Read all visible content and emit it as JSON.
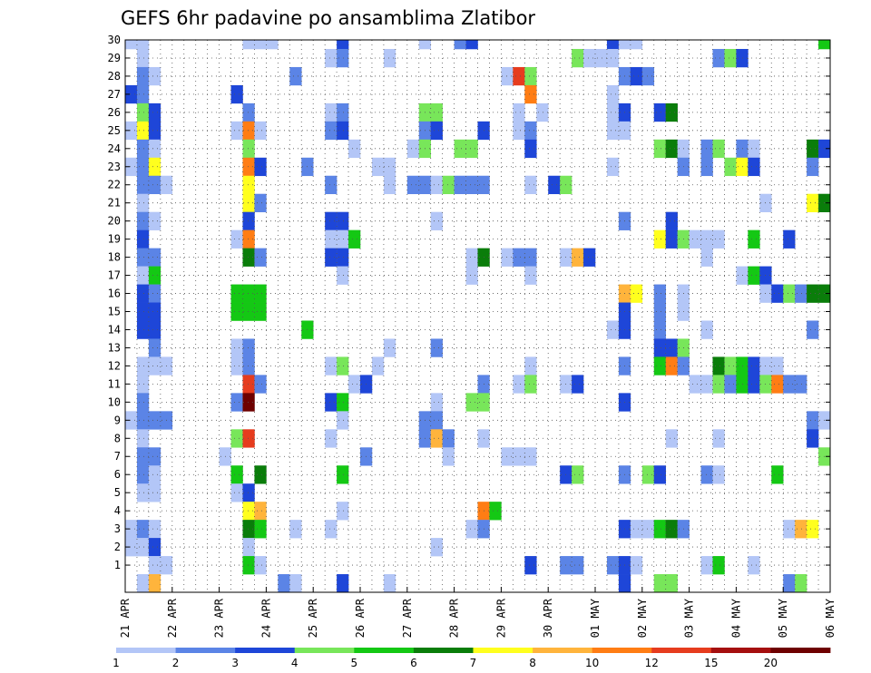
{
  "chart_data": {
    "type": "heatmap",
    "title": "GEFS 6hr padavine po ansamblima Zlatibor",
    "xlabel": "",
    "ylabel": "",
    "y_ticks": [
      "1",
      "2",
      "3",
      "4",
      "5",
      "6",
      "7",
      "8",
      "9",
      "10",
      "11",
      "12",
      "13",
      "14",
      "15",
      "16",
      "17",
      "18",
      "19",
      "20",
      "21",
      "22",
      "23",
      "24",
      "25",
      "26",
      "27",
      "28",
      "29",
      "30"
    ],
    "x_ticks": [
      "21 APR",
      "22 APR",
      "23 APR",
      "24 APR",
      "25 APR",
      "26 APR",
      "27 APR",
      "28 APR",
      "29 APR",
      "30 APR",
      "01 MAY",
      "02 MAY",
      "03 MAY",
      "04 MAY",
      "05 MAY",
      "06 MAY"
    ],
    "x_range_steps": [
      0,
      60
    ],
    "y_range": [
      0,
      30
    ],
    "grid": "dotted",
    "colorbar": {
      "levels": [
        "1",
        "2",
        "3",
        "4",
        "5",
        "6",
        "7",
        "8",
        "10",
        "12",
        "15",
        "20"
      ],
      "colors": [
        "#b3c6f7",
        "#5b84e6",
        "#1e46d8",
        "#78e65a",
        "#14c814",
        "#0a7d0a",
        "#ffff1e",
        "#ffb43c",
        "#ff7d14",
        "#e63c1e",
        "#a50f0f",
        "#6e0000"
      ]
    },
    "class_colors": [
      "#b3c6f7",
      "#5b84e6",
      "#1e46d8",
      "#78e65a",
      "#14c814",
      "#0a7d0a",
      "#ffff1e",
      "#ffb43c",
      "#ff7d14",
      "#e63c1e",
      "#a50f0f",
      "#6e0000"
    ],
    "cells_note_format": "[member, time_step, class]",
    "cells": [
      [
        30,
        0,
        1
      ],
      [
        30,
        1,
        1
      ],
      [
        30,
        10,
        1
      ],
      [
        30,
        11,
        1
      ],
      [
        30,
        12,
        1
      ],
      [
        30,
        18,
        3
      ],
      [
        30,
        25,
        1
      ],
      [
        30,
        28,
        2
      ],
      [
        30,
        29,
        3
      ],
      [
        30,
        41,
        3
      ],
      [
        30,
        42,
        1
      ],
      [
        30,
        43,
        1
      ],
      [
        30,
        59,
        5
      ],
      [
        29,
        1,
        1
      ],
      [
        29,
        17,
        1
      ],
      [
        29,
        18,
        2
      ],
      [
        29,
        22,
        1
      ],
      [
        29,
        38,
        4
      ],
      [
        29,
        39,
        1
      ],
      [
        29,
        40,
        1
      ],
      [
        29,
        41,
        1
      ],
      [
        29,
        50,
        2
      ],
      [
        29,
        51,
        4
      ],
      [
        29,
        52,
        3
      ],
      [
        28,
        1,
        2
      ],
      [
        28,
        2,
        1
      ],
      [
        28,
        14,
        2
      ],
      [
        28,
        32,
        1
      ],
      [
        28,
        33,
        10
      ],
      [
        28,
        34,
        4
      ],
      [
        28,
        42,
        2
      ],
      [
        28,
        43,
        3
      ],
      [
        28,
        44,
        2
      ],
      [
        27,
        0,
        3
      ],
      [
        27,
        1,
        2
      ],
      [
        27,
        9,
        3
      ],
      [
        27,
        34,
        9
      ],
      [
        27,
        41,
        1
      ],
      [
        26,
        1,
        4
      ],
      [
        26,
        2,
        3
      ],
      [
        26,
        10,
        2
      ],
      [
        26,
        17,
        1
      ],
      [
        26,
        18,
        2
      ],
      [
        26,
        25,
        4
      ],
      [
        26,
        26,
        4
      ],
      [
        26,
        33,
        1
      ],
      [
        26,
        35,
        1
      ],
      [
        26,
        41,
        1
      ],
      [
        26,
        42,
        3
      ],
      [
        26,
        45,
        3
      ],
      [
        26,
        46,
        6
      ],
      [
        25,
        0,
        1
      ],
      [
        25,
        1,
        7
      ],
      [
        25,
        2,
        3
      ],
      [
        25,
        9,
        1
      ],
      [
        25,
        10,
        9
      ],
      [
        25,
        11,
        1
      ],
      [
        25,
        17,
        2
      ],
      [
        25,
        18,
        3
      ],
      [
        25,
        25,
        2
      ],
      [
        25,
        26,
        3
      ],
      [
        25,
        30,
        3
      ],
      [
        25,
        33,
        1
      ],
      [
        25,
        34,
        2
      ],
      [
        25,
        41,
        1
      ],
      [
        25,
        42,
        1
      ],
      [
        24,
        1,
        2
      ],
      [
        24,
        2,
        1
      ],
      [
        24,
        10,
        4
      ],
      [
        24,
        19,
        1
      ],
      [
        24,
        24,
        1
      ],
      [
        24,
        25,
        4
      ],
      [
        24,
        28,
        4
      ],
      [
        24,
        29,
        4
      ],
      [
        24,
        34,
        3
      ],
      [
        24,
        45,
        4
      ],
      [
        24,
        46,
        6
      ],
      [
        24,
        47,
        1
      ],
      [
        24,
        49,
        2
      ],
      [
        24,
        50,
        4
      ],
      [
        24,
        52,
        2
      ],
      [
        24,
        53,
        1
      ],
      [
        24,
        58,
        6
      ],
      [
        24,
        59,
        3
      ],
      [
        23,
        0,
        1
      ],
      [
        23,
        1,
        2
      ],
      [
        23,
        2,
        7
      ],
      [
        23,
        10,
        9
      ],
      [
        23,
        11,
        3
      ],
      [
        23,
        15,
        2
      ],
      [
        23,
        21,
        1
      ],
      [
        23,
        22,
        1
      ],
      [
        23,
        41,
        1
      ],
      [
        23,
        47,
        2
      ],
      [
        23,
        49,
        2
      ],
      [
        23,
        51,
        4
      ],
      [
        23,
        52,
        7
      ],
      [
        23,
        53,
        3
      ],
      [
        23,
        58,
        2
      ],
      [
        22,
        1,
        2
      ],
      [
        22,
        2,
        2
      ],
      [
        22,
        3,
        1
      ],
      [
        22,
        10,
        7
      ],
      [
        22,
        17,
        2
      ],
      [
        22,
        22,
        1
      ],
      [
        22,
        24,
        2
      ],
      [
        22,
        25,
        2
      ],
      [
        22,
        26,
        1
      ],
      [
        22,
        27,
        4
      ],
      [
        22,
        28,
        2
      ],
      [
        22,
        29,
        2
      ],
      [
        22,
        30,
        2
      ],
      [
        22,
        34,
        1
      ],
      [
        22,
        36,
        3
      ],
      [
        22,
        37,
        4
      ],
      [
        21,
        1,
        1
      ],
      [
        21,
        10,
        7
      ],
      [
        21,
        11,
        2
      ],
      [
        21,
        54,
        1
      ],
      [
        21,
        58,
        7
      ],
      [
        21,
        59,
        6
      ],
      [
        20,
        1,
        2
      ],
      [
        20,
        2,
        1
      ],
      [
        20,
        10,
        3
      ],
      [
        20,
        17,
        3
      ],
      [
        20,
        18,
        3
      ],
      [
        20,
        26,
        1
      ],
      [
        20,
        42,
        2
      ],
      [
        20,
        46,
        3
      ],
      [
        19,
        1,
        3
      ],
      [
        19,
        9,
        1
      ],
      [
        19,
        10,
        9
      ],
      [
        19,
        17,
        1
      ],
      [
        19,
        18,
        1
      ],
      [
        19,
        19,
        5
      ],
      [
        19,
        45,
        7
      ],
      [
        19,
        46,
        3
      ],
      [
        19,
        47,
        4
      ],
      [
        19,
        48,
        1
      ],
      [
        19,
        49,
        1
      ],
      [
        19,
        50,
        1
      ],
      [
        19,
        53,
        5
      ],
      [
        19,
        56,
        3
      ],
      [
        18,
        1,
        2
      ],
      [
        18,
        2,
        2
      ],
      [
        18,
        10,
        6
      ],
      [
        18,
        11,
        2
      ],
      [
        18,
        17,
        3
      ],
      [
        18,
        18,
        3
      ],
      [
        18,
        29,
        1
      ],
      [
        18,
        30,
        6
      ],
      [
        18,
        32,
        1
      ],
      [
        18,
        33,
        2
      ],
      [
        18,
        34,
        2
      ],
      [
        18,
        37,
        1
      ],
      [
        18,
        38,
        8
      ],
      [
        18,
        39,
        3
      ],
      [
        18,
        49,
        1
      ],
      [
        17,
        1,
        1
      ],
      [
        17,
        2,
        5
      ],
      [
        17,
        18,
        1
      ],
      [
        17,
        29,
        1
      ],
      [
        17,
        34,
        1
      ],
      [
        17,
        52,
        1
      ],
      [
        17,
        53,
        5
      ],
      [
        17,
        54,
        3
      ],
      [
        16,
        1,
        3
      ],
      [
        16,
        2,
        2
      ],
      [
        16,
        9,
        5
      ],
      [
        16,
        10,
        5
      ],
      [
        16,
        11,
        5
      ],
      [
        16,
        42,
        8
      ],
      [
        16,
        43,
        7
      ],
      [
        16,
        45,
        2
      ],
      [
        16,
        47,
        1
      ],
      [
        16,
        54,
        1
      ],
      [
        16,
        55,
        3
      ],
      [
        16,
        56,
        4
      ],
      [
        16,
        57,
        2
      ],
      [
        16,
        58,
        6
      ],
      [
        16,
        59,
        6
      ],
      [
        15,
        1,
        3
      ],
      [
        15,
        2,
        3
      ],
      [
        15,
        9,
        5
      ],
      [
        15,
        10,
        5
      ],
      [
        15,
        11,
        5
      ],
      [
        15,
        42,
        3
      ],
      [
        15,
        45,
        2
      ],
      [
        15,
        47,
        1
      ],
      [
        14,
        1,
        3
      ],
      [
        14,
        2,
        3
      ],
      [
        14,
        15,
        5
      ],
      [
        14,
        41,
        1
      ],
      [
        14,
        42,
        3
      ],
      [
        14,
        45,
        2
      ],
      [
        14,
        49,
        1
      ],
      [
        14,
        58,
        2
      ],
      [
        13,
        2,
        2
      ],
      [
        13,
        9,
        1
      ],
      [
        13,
        10,
        2
      ],
      [
        13,
        22,
        1
      ],
      [
        13,
        26,
        2
      ],
      [
        13,
        45,
        3
      ],
      [
        13,
        46,
        3
      ],
      [
        13,
        47,
        4
      ],
      [
        12,
        1,
        1
      ],
      [
        12,
        2,
        1
      ],
      [
        12,
        3,
        1
      ],
      [
        12,
        9,
        1
      ],
      [
        12,
        10,
        2
      ],
      [
        12,
        17,
        1
      ],
      [
        12,
        18,
        4
      ],
      [
        12,
        21,
        1
      ],
      [
        12,
        34,
        1
      ],
      [
        12,
        42,
        2
      ],
      [
        12,
        45,
        5
      ],
      [
        12,
        46,
        9
      ],
      [
        12,
        47,
        2
      ],
      [
        12,
        50,
        6
      ],
      [
        12,
        51,
        4
      ],
      [
        12,
        52,
        5
      ],
      [
        12,
        53,
        3
      ],
      [
        12,
        54,
        1
      ],
      [
        12,
        55,
        1
      ],
      [
        11,
        1,
        1
      ],
      [
        11,
        10,
        10
      ],
      [
        11,
        11,
        2
      ],
      [
        11,
        19,
        1
      ],
      [
        11,
        20,
        3
      ],
      [
        11,
        30,
        2
      ],
      [
        11,
        33,
        1
      ],
      [
        11,
        34,
        4
      ],
      [
        11,
        37,
        1
      ],
      [
        11,
        38,
        3
      ],
      [
        11,
        48,
        1
      ],
      [
        11,
        49,
        1
      ],
      [
        11,
        50,
        4
      ],
      [
        11,
        51,
        2
      ],
      [
        11,
        52,
        5
      ],
      [
        11,
        53,
        3
      ],
      [
        11,
        54,
        4
      ],
      [
        11,
        55,
        9
      ],
      [
        11,
        56,
        2
      ],
      [
        11,
        57,
        2
      ],
      [
        10,
        1,
        2
      ],
      [
        10,
        9,
        2
      ],
      [
        10,
        10,
        12
      ],
      [
        10,
        17,
        3
      ],
      [
        10,
        18,
        5
      ],
      [
        10,
        26,
        1
      ],
      [
        10,
        29,
        4
      ],
      [
        10,
        30,
        4
      ],
      [
        10,
        42,
        3
      ],
      [
        9,
        0,
        1
      ],
      [
        9,
        1,
        2
      ],
      [
        9,
        2,
        2
      ],
      [
        9,
        3,
        2
      ],
      [
        9,
        18,
        1
      ],
      [
        9,
        25,
        2
      ],
      [
        9,
        26,
        2
      ],
      [
        9,
        58,
        2
      ],
      [
        9,
        59,
        1
      ],
      [
        8,
        1,
        1
      ],
      [
        8,
        9,
        4
      ],
      [
        8,
        10,
        10
      ],
      [
        8,
        17,
        1
      ],
      [
        8,
        25,
        2
      ],
      [
        8,
        26,
        8
      ],
      [
        8,
        27,
        2
      ],
      [
        8,
        30,
        1
      ],
      [
        8,
        46,
        1
      ],
      [
        8,
        50,
        1
      ],
      [
        8,
        58,
        3
      ],
      [
        7,
        1,
        2
      ],
      [
        7,
        2,
        2
      ],
      [
        7,
        8,
        1
      ],
      [
        7,
        20,
        2
      ],
      [
        7,
        27,
        1
      ],
      [
        7,
        32,
        1
      ],
      [
        7,
        33,
        1
      ],
      [
        7,
        34,
        1
      ],
      [
        7,
        59,
        4
      ],
      [
        6,
        1,
        2
      ],
      [
        6,
        2,
        1
      ],
      [
        6,
        9,
        5
      ],
      [
        6,
        11,
        6
      ],
      [
        6,
        18,
        5
      ],
      [
        6,
        37,
        3
      ],
      [
        6,
        38,
        4
      ],
      [
        6,
        42,
        2
      ],
      [
        6,
        44,
        4
      ],
      [
        6,
        45,
        3
      ],
      [
        6,
        49,
        2
      ],
      [
        6,
        50,
        1
      ],
      [
        6,
        55,
        5
      ],
      [
        5,
        1,
        1
      ],
      [
        5,
        2,
        1
      ],
      [
        5,
        9,
        1
      ],
      [
        5,
        10,
        3
      ],
      [
        4,
        10,
        7
      ],
      [
        4,
        11,
        8
      ],
      [
        4,
        18,
        1
      ],
      [
        4,
        30,
        9
      ],
      [
        4,
        31,
        5
      ],
      [
        3,
        0,
        1
      ],
      [
        3,
        1,
        2
      ],
      [
        3,
        2,
        1
      ],
      [
        3,
        10,
        6
      ],
      [
        3,
        11,
        5
      ],
      [
        3,
        14,
        1
      ],
      [
        3,
        17,
        1
      ],
      [
        3,
        29,
        1
      ],
      [
        3,
        30,
        2
      ],
      [
        3,
        42,
        3
      ],
      [
        3,
        43,
        1
      ],
      [
        3,
        44,
        1
      ],
      [
        3,
        45,
        5
      ],
      [
        3,
        46,
        6
      ],
      [
        3,
        47,
        2
      ],
      [
        3,
        56,
        1
      ],
      [
        3,
        57,
        8
      ],
      [
        3,
        58,
        7
      ],
      [
        2,
        0,
        1
      ],
      [
        2,
        1,
        1
      ],
      [
        2,
        2,
        3
      ],
      [
        2,
        10,
        1
      ],
      [
        2,
        26,
        1
      ],
      [
        1,
        2,
        1
      ],
      [
        1,
        3,
        1
      ],
      [
        1,
        10,
        5
      ],
      [
        1,
        11,
        1
      ],
      [
        1,
        34,
        3
      ],
      [
        1,
        37,
        2
      ],
      [
        1,
        38,
        2
      ],
      [
        1,
        41,
        2
      ],
      [
        1,
        42,
        3
      ],
      [
        1,
        43,
        1
      ],
      [
        1,
        49,
        1
      ],
      [
        1,
        50,
        5
      ],
      [
        1,
        53,
        1
      ],
      [
        0,
        1,
        1
      ],
      [
        0,
        2,
        8
      ],
      [
        0,
        13,
        2
      ],
      [
        0,
        14,
        1
      ],
      [
        0,
        18,
        3
      ],
      [
        0,
        22,
        1
      ],
      [
        0,
        42,
        3
      ],
      [
        0,
        45,
        4
      ],
      [
        0,
        46,
        4
      ],
      [
        0,
        56,
        2
      ],
      [
        0,
        57,
        4
      ]
    ]
  }
}
